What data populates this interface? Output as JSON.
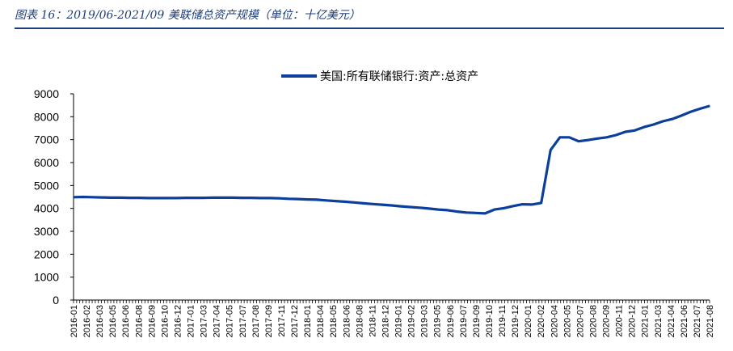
{
  "caption": "图表 16：2019/06-2021/09 美联储总资产规模（单位：十亿美元）",
  "chart_data": {
    "type": "line",
    "title": "",
    "xlabel": "",
    "ylabel": "",
    "ylim": [
      0,
      9000
    ],
    "yticks": [
      0,
      1000,
      2000,
      3000,
      4000,
      5000,
      6000,
      7000,
      8000,
      9000
    ],
    "grid": false,
    "legend_position": "top-center",
    "color": "#0b3f9b",
    "series": [
      {
        "name": "美国:所有联储银行:资产:总资产",
        "x": [
          "2016-01",
          "2016-02",
          "2016-03",
          "2016-04",
          "2016-05",
          "2016-06",
          "2016-07",
          "2016-08",
          "2016-09",
          "2016-10",
          "2016-11",
          "2016-12",
          "2017-01",
          "2017-02",
          "2017-03",
          "2017-04",
          "2017-05",
          "2017-06",
          "2017-07",
          "2017-08",
          "2017-09",
          "2017-10",
          "2017-11",
          "2017-12",
          "2018-01",
          "2018-02",
          "2018-03",
          "2018-04",
          "2018-05",
          "2018-06",
          "2018-07",
          "2018-08",
          "2018-09",
          "2018-10",
          "2018-11",
          "2018-12",
          "2019-01",
          "2019-02",
          "2019-03",
          "2019-04",
          "2019-05",
          "2019-06",
          "2019-07",
          "2019-08",
          "2019-09",
          "2019-10",
          "2019-11",
          "2019-12",
          "2020-01",
          "2020-02",
          "2020-03",
          "2020-04",
          "2020-05",
          "2020-06",
          "2020-07",
          "2020-08",
          "2020-09",
          "2020-10",
          "2020-11",
          "2020-12",
          "2021-01",
          "2021-02",
          "2021-03",
          "2021-04",
          "2021-05",
          "2021-06",
          "2021-07",
          "2021-08",
          "2021-09"
        ],
        "values": [
          4490,
          4500,
          4490,
          4480,
          4470,
          4470,
          4460,
          4460,
          4450,
          4450,
          4450,
          4450,
          4460,
          4460,
          4460,
          4470,
          4470,
          4470,
          4460,
          4460,
          4450,
          4450,
          4440,
          4420,
          4410,
          4390,
          4380,
          4350,
          4320,
          4290,
          4260,
          4220,
          4190,
          4160,
          4130,
          4090,
          4060,
          4030,
          3990,
          3950,
          3920,
          3860,
          3820,
          3800,
          3780,
          3950,
          4010,
          4100,
          4180,
          4170,
          4240,
          6550,
          7100,
          7100,
          6930,
          6980,
          7050,
          7100,
          7200,
          7340,
          7400,
          7550,
          7660,
          7800,
          7900,
          8050,
          8220,
          8350,
          8470
        ]
      }
    ],
    "xtick_labels": [
      "2016-01",
      "2016-02",
      "2016-03",
      "2016-05",
      "2016-06",
      "2016-08",
      "2016-09",
      "2016-10",
      "2016-12",
      "2017-01",
      "2017-03",
      "2017-04",
      "2017-05",
      "2017-07",
      "2017-08",
      "2017-09",
      "2017-11",
      "2017-12",
      "2018-01",
      "2018-04",
      "2018-05",
      "2018-06",
      "2018-08",
      "2018-11",
      "2018-12",
      "2019-01",
      "2019-02",
      "2019-03",
      "2019-05",
      "2019-06",
      "2019-07",
      "2019-09",
      "2019-10",
      "2019-11",
      "2019-12",
      "2020-01",
      "2020-02",
      "2020-04",
      "2020-05",
      "2020-07",
      "2020-08",
      "2020-09",
      "2020-11",
      "2020-12",
      "2021-01",
      "2021-03",
      "2021-04",
      "2021-06",
      "2021-07",
      "2021-08"
    ]
  }
}
